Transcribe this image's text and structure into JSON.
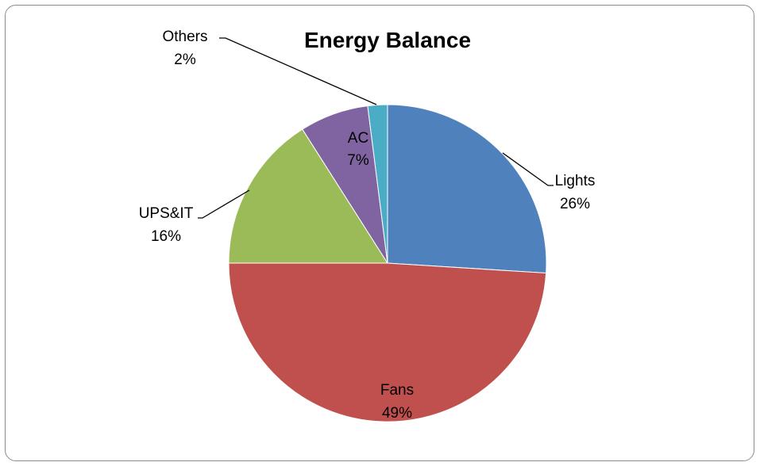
{
  "chart_data": {
    "type": "pie",
    "title": "Energy Balance",
    "categories": [
      "Lights",
      "Fans",
      "UPS&IT",
      "AC",
      "Others"
    ],
    "values": [
      26,
      49,
      16,
      7,
      2
    ],
    "value_labels": [
      "26%",
      "49%",
      "16%",
      "7%",
      "2%"
    ],
    "colors": [
      "#4F81BD",
      "#C0504D",
      "#9BBB59",
      "#8064A2",
      "#4BACC6"
    ],
    "legend": "none",
    "label_placement": {
      "Lights": "outside",
      "Fans": "inside",
      "UPS&IT": "outside",
      "AC": "inside",
      "Others": "outside"
    }
  }
}
